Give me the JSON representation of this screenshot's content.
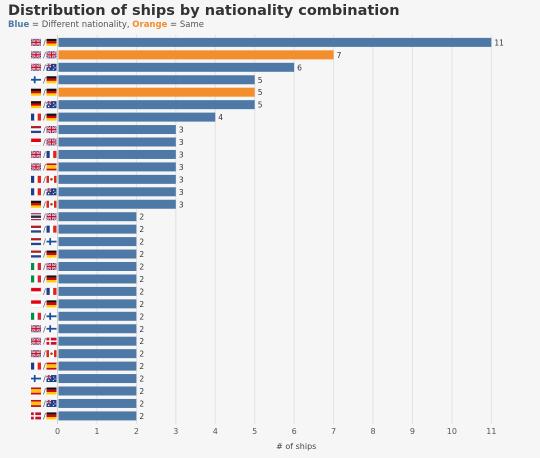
{
  "header": {
    "title": "Distribution of ships by nationality combination",
    "legend_blue_word": "Blue",
    "legend_blue_text": " = Different nationality, ",
    "legend_orange_word": "Orange",
    "legend_orange_text": " = Same"
  },
  "colors": {
    "different": "#4e79a7",
    "same": "#f28e2b"
  },
  "chart_data": {
    "type": "bar",
    "orientation": "horizontal",
    "title": "Distribution of ships by nationality combination",
    "xlabel": "# of ships",
    "ylabel": "",
    "xlim": [
      0,
      11.6
    ],
    "xticks": [
      0,
      1,
      2,
      3,
      4,
      5,
      6,
      7,
      8,
      9,
      10,
      11
    ],
    "grid": true,
    "categories": [
      {
        "flags": [
          "uk",
          "de"
        ],
        "value": 11,
        "same": false
      },
      {
        "flags": [
          "uk",
          "uk"
        ],
        "value": 7,
        "same": true
      },
      {
        "flags": [
          "uk",
          "au"
        ],
        "value": 6,
        "same": false
      },
      {
        "flags": [
          "fi",
          "de"
        ],
        "value": 5,
        "same": false
      },
      {
        "flags": [
          "de",
          "de"
        ],
        "value": 5,
        "same": true
      },
      {
        "flags": [
          "de",
          "au"
        ],
        "value": 5,
        "same": false
      },
      {
        "flags": [
          "fr",
          "de"
        ],
        "value": 4,
        "same": false
      },
      {
        "flags": [
          "nl",
          "uk"
        ],
        "value": 3,
        "same": false
      },
      {
        "flags": [
          "id",
          "uk"
        ],
        "value": 3,
        "same": false
      },
      {
        "flags": [
          "uk",
          "fr"
        ],
        "value": 3,
        "same": false
      },
      {
        "flags": [
          "uk",
          "es"
        ],
        "value": 3,
        "same": false
      },
      {
        "flags": [
          "fr",
          "ca"
        ],
        "value": 3,
        "same": false
      },
      {
        "flags": [
          "fr",
          "au"
        ],
        "value": 3,
        "same": false
      },
      {
        "flags": [
          "de",
          "ca"
        ],
        "value": 3,
        "same": false
      },
      {
        "flags": [
          "th",
          "uk"
        ],
        "value": 2,
        "same": false
      },
      {
        "flags": [
          "nl",
          "fr"
        ],
        "value": 2,
        "same": false
      },
      {
        "flags": [
          "nl",
          "fi"
        ],
        "value": 2,
        "same": false
      },
      {
        "flags": [
          "nl",
          "de"
        ],
        "value": 2,
        "same": false
      },
      {
        "flags": [
          "it",
          "uk"
        ],
        "value": 2,
        "same": false
      },
      {
        "flags": [
          "it",
          "de"
        ],
        "value": 2,
        "same": false
      },
      {
        "flags": [
          "id",
          "fr"
        ],
        "value": 2,
        "same": false
      },
      {
        "flags": [
          "id",
          "de"
        ],
        "value": 2,
        "same": false
      },
      {
        "flags": [
          "it",
          "fi"
        ],
        "value": 2,
        "same": false
      },
      {
        "flags": [
          "uk",
          "fi"
        ],
        "value": 2,
        "same": false
      },
      {
        "flags": [
          "uk",
          "dk"
        ],
        "value": 2,
        "same": false
      },
      {
        "flags": [
          "uk",
          "ca"
        ],
        "value": 2,
        "same": false
      },
      {
        "flags": [
          "fr",
          "es"
        ],
        "value": 2,
        "same": false
      },
      {
        "flags": [
          "fi",
          "au"
        ],
        "value": 2,
        "same": false
      },
      {
        "flags": [
          "es",
          "de"
        ],
        "value": 2,
        "same": false
      },
      {
        "flags": [
          "es",
          "au"
        ],
        "value": 2,
        "same": false
      },
      {
        "flags": [
          "dk",
          "de"
        ],
        "value": 2,
        "same": false
      }
    ]
  }
}
